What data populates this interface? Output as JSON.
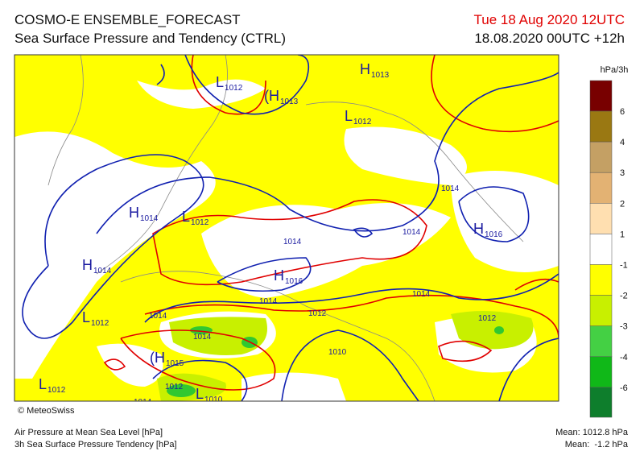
{
  "header": {
    "title": "COSMO-E ENSEMBLE_FORECAST",
    "subtitle": "Sea Surface Pressure and Tendency (CTRL)",
    "valid_time": "Tue 18 Aug 2020 12UTC",
    "run_time": "18.08.2020 00UTC +12h"
  },
  "map": {
    "credit": "© MeteoSwiss",
    "centers": [
      {
        "letter": "H",
        "value": "1013"
      },
      {
        "letter": "L",
        "value": "1012"
      },
      {
        "letter": "(H",
        "value": "1013"
      },
      {
        "letter": "L",
        "value": "1012"
      },
      {
        "letter": "H",
        "value": "1014"
      },
      {
        "letter": "L",
        "value": "1012"
      },
      {
        "letter": "H",
        "value": "1014"
      },
      {
        "letter": "H",
        "value": "1016"
      },
      {
        "letter": "H",
        "value": "1016"
      },
      {
        "letter": "L",
        "value": "1012"
      },
      {
        "letter": "(H",
        "value": "1015"
      },
      {
        "letter": "L",
        "value": "1012"
      },
      {
        "letter": "L",
        "value": "1010"
      }
    ],
    "isobar_labels": [
      "1014",
      "1014",
      "1014",
      "1014",
      "1014",
      "1014",
      "1014",
      "1014",
      "1012",
      "1012",
      "1012",
      "1010"
    ]
  },
  "legend": {
    "unit": "hPa/3h",
    "ticks": [
      "6",
      "4",
      "3",
      "2",
      "1",
      "-1",
      "-2",
      "-3",
      "-4",
      "-6"
    ],
    "colors": [
      "#780000",
      "#9a7812",
      "#c4a064",
      "#e3b273",
      "#ffdfb0",
      "#ffffff",
      "#ffff00",
      "#c8f000",
      "#44d044",
      "#10b818",
      "#0e7e2c"
    ]
  },
  "footer": {
    "left": [
      "Air Pressure at Mean Sea Level [hPa]",
      "3h Sea Surface Pressure Tendency [hPa]"
    ],
    "right": [
      "Mean: 1012.8 hPa",
      "Mean:  -1.2 hPa"
    ]
  }
}
